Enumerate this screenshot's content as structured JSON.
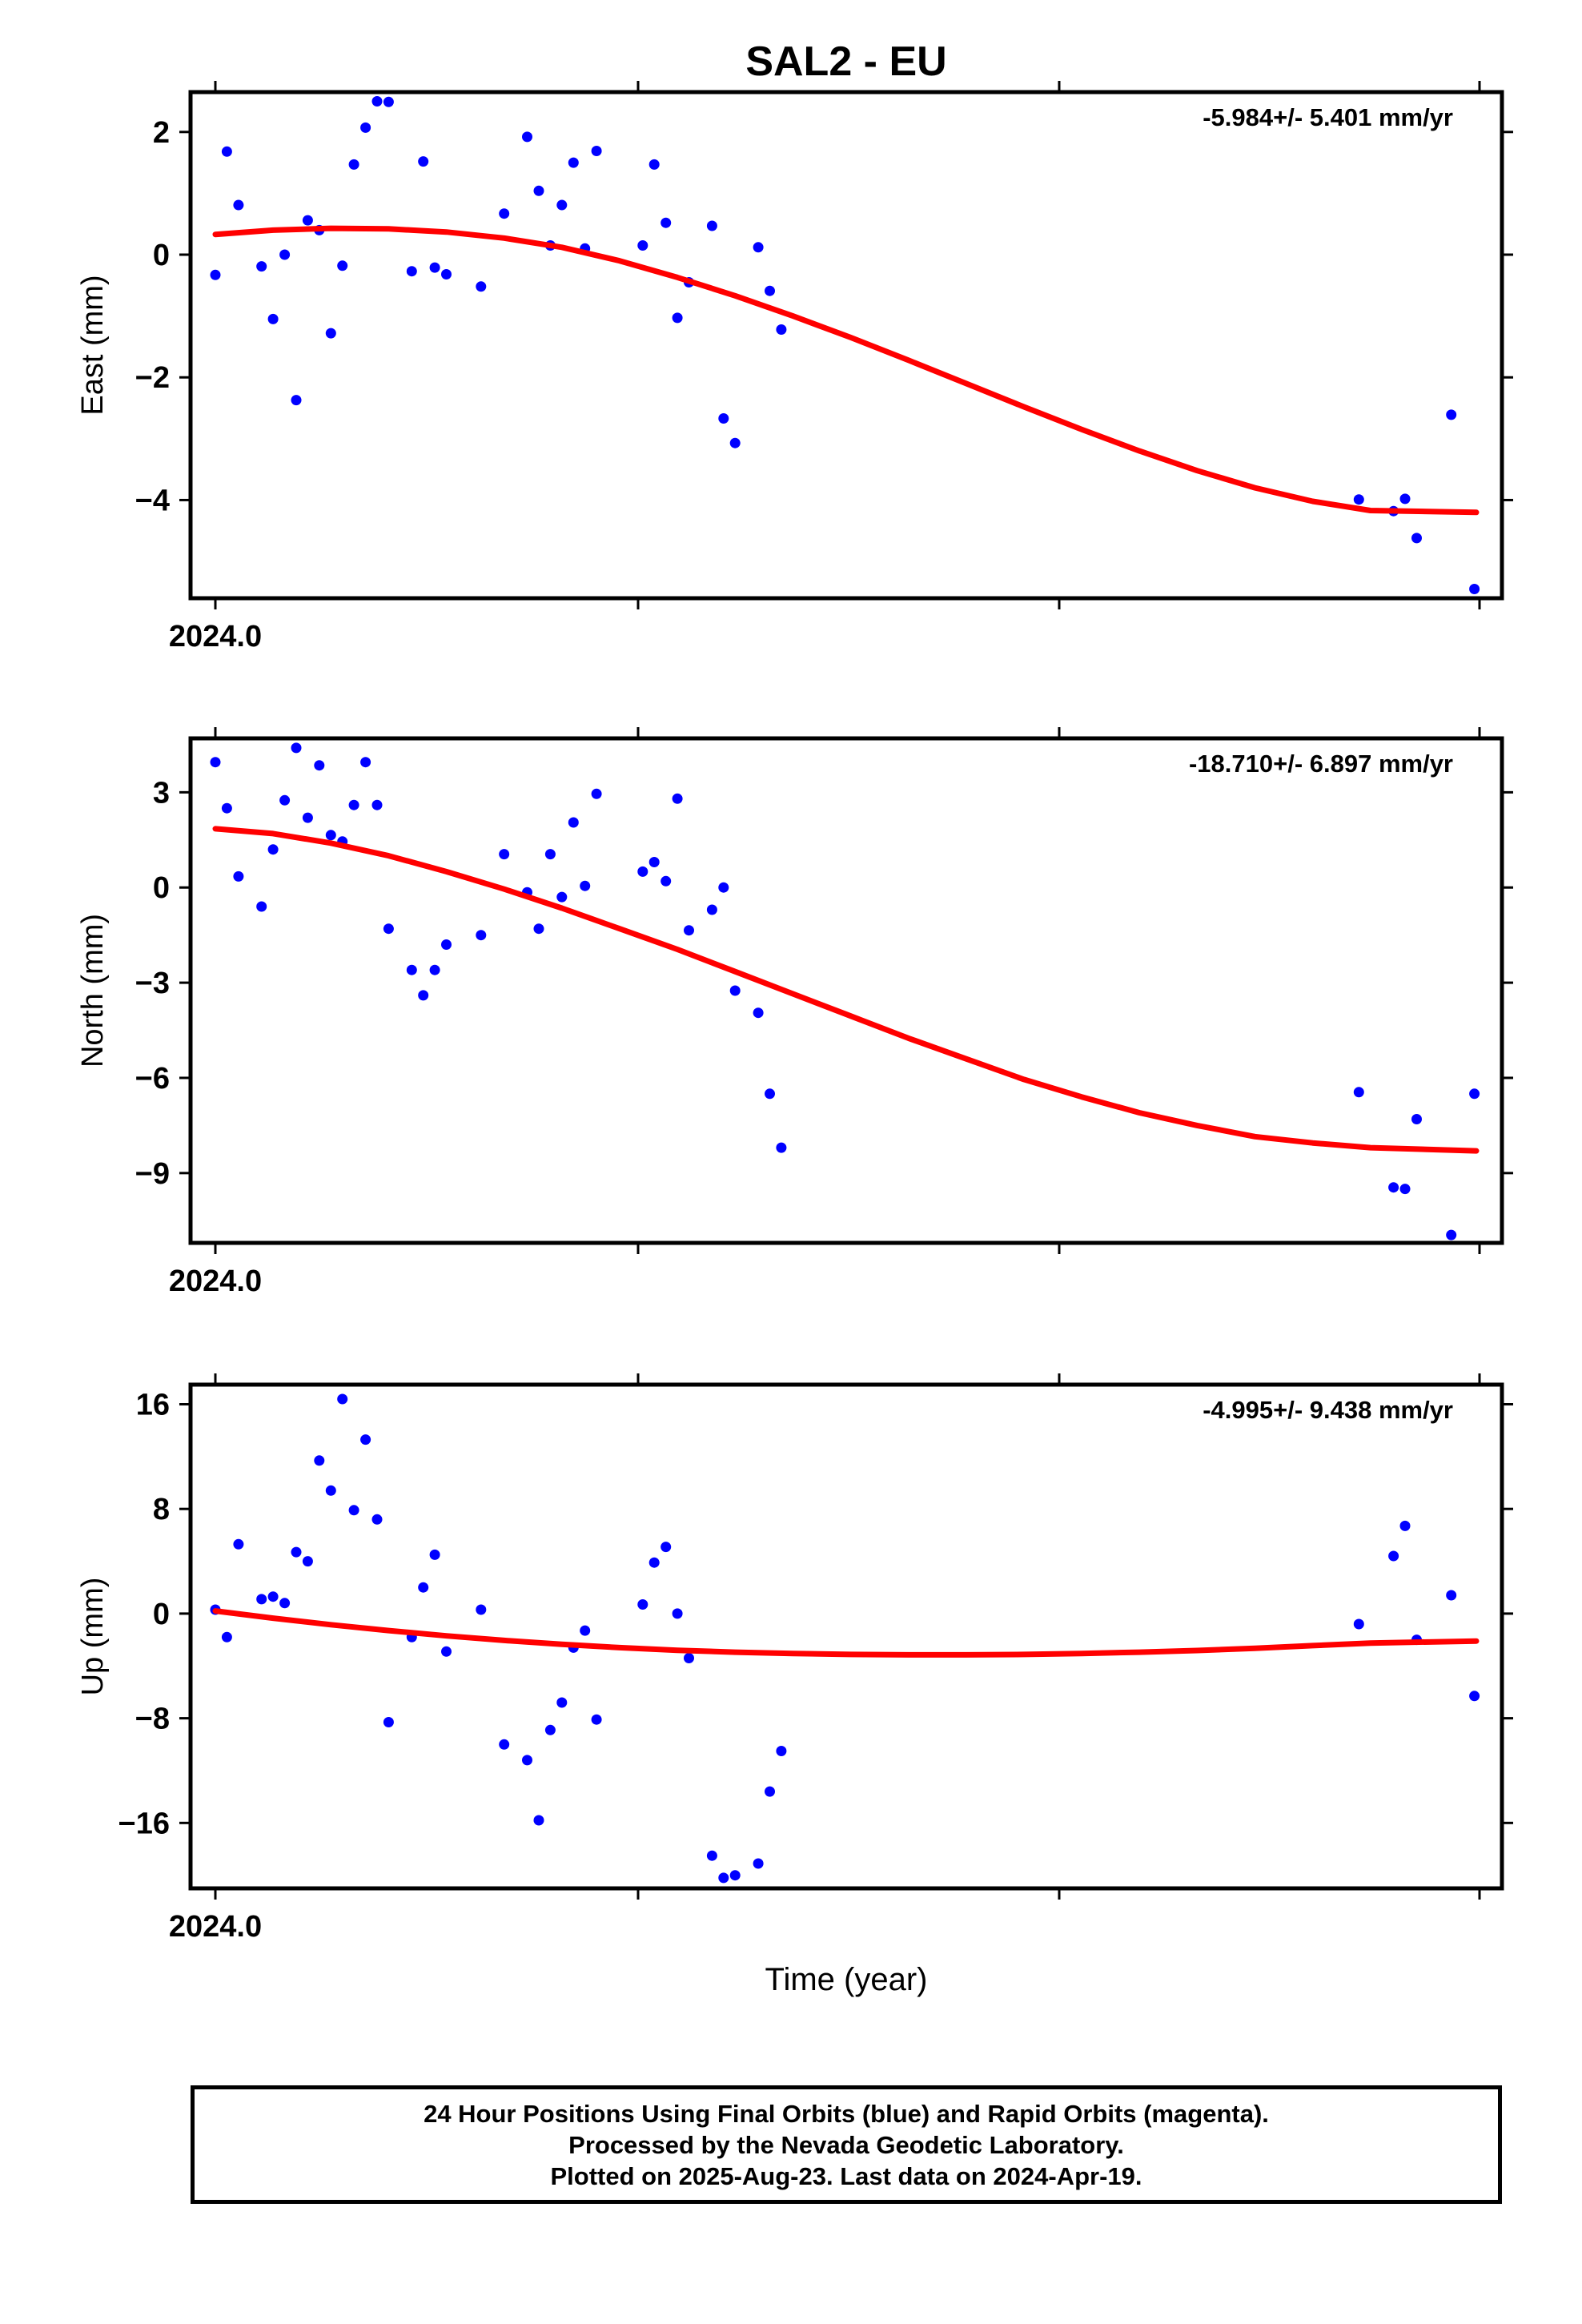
{
  "title": "SAL2 - EU",
  "colors": {
    "points": "#0000ff",
    "fit": "#ff0000",
    "axes": "#000000"
  },
  "xlabel": "Time (year)",
  "chart_data": [
    {
      "type": "scatter",
      "name": "east",
      "ylabel": "East (mm)",
      "rate_text": "-5.984+/- 5.401 mm/yr",
      "xlim": [
        2023.988,
        2024.315
      ],
      "ylim": [
        -5.6,
        2.65
      ],
      "x_tick_label": "2024.0",
      "y_ticks": [
        2,
        0,
        -2,
        -4
      ],
      "y_tick_labels": [
        "2",
        "0",
        "−2",
        "−4"
      ],
      "points": [
        [
          2024.0,
          -0.33
        ],
        [
          2024.003,
          1.68
        ],
        [
          2024.006,
          0.81
        ],
        [
          2024.012,
          -0.19
        ],
        [
          2024.015,
          -1.05
        ],
        [
          2024.018,
          0.0
        ],
        [
          2024.021,
          -2.37
        ],
        [
          2024.024,
          0.56
        ],
        [
          2024.027,
          0.4
        ],
        [
          2024.03,
          -1.28
        ],
        [
          2024.033,
          -0.18
        ],
        [
          2024.036,
          1.47
        ],
        [
          2024.039,
          2.07
        ],
        [
          2024.042,
          2.5
        ],
        [
          2024.045,
          2.49
        ],
        [
          2024.051,
          -0.27
        ],
        [
          2024.054,
          1.52
        ],
        [
          2024.057,
          -0.21
        ],
        [
          2024.06,
          -0.32
        ],
        [
          2024.069,
          -0.52
        ],
        [
          2024.075,
          0.67
        ],
        [
          2024.081,
          1.92
        ],
        [
          2024.084,
          1.04
        ],
        [
          2024.087,
          0.15
        ],
        [
          2024.09,
          0.81
        ],
        [
          2024.093,
          1.5
        ],
        [
          2024.096,
          0.1
        ],
        [
          2024.099,
          1.69
        ],
        [
          2024.111,
          0.15
        ],
        [
          2024.114,
          1.47
        ],
        [
          2024.117,
          0.52
        ],
        [
          2024.12,
          -1.03
        ],
        [
          2024.123,
          -0.45
        ],
        [
          2024.129,
          0.47
        ],
        [
          2024.132,
          -2.67
        ],
        [
          2024.135,
          -3.07
        ],
        [
          2024.141,
          0.12
        ],
        [
          2024.144,
          -0.59
        ],
        [
          2024.147,
          -1.22
        ],
        [
          2024.297,
          -3.99
        ],
        [
          2024.306,
          -4.18
        ],
        [
          2024.309,
          -3.98
        ],
        [
          2024.312,
          -4.62
        ],
        [
          2024.321,
          -2.61
        ],
        [
          2024.327,
          -5.45
        ]
      ],
      "trend": [
        [
          2024.0,
          0.33
        ],
        [
          2024.015,
          0.4
        ],
        [
          2024.03,
          0.43
        ],
        [
          2024.045,
          0.42
        ],
        [
          2024.06,
          0.37
        ],
        [
          2024.075,
          0.27
        ],
        [
          2024.09,
          0.12
        ],
        [
          2024.105,
          -0.1
        ],
        [
          2024.12,
          -0.37
        ],
        [
          2024.135,
          -0.67
        ],
        [
          2024.15,
          -1.0
        ],
        [
          2024.165,
          -1.35
        ],
        [
          2024.18,
          -1.72
        ],
        [
          2024.195,
          -2.1
        ],
        [
          2024.21,
          -2.48
        ],
        [
          2024.225,
          -2.85
        ],
        [
          2024.24,
          -3.2
        ],
        [
          2024.255,
          -3.52
        ],
        [
          2024.27,
          -3.8
        ],
        [
          2024.285,
          -4.02
        ],
        [
          2024.3,
          -4.17
        ],
        [
          2024.3275,
          -4.2
        ]
      ]
    },
    {
      "type": "scatter",
      "name": "north",
      "ylabel": "North (mm)",
      "rate_text": "-18.710+/- 6.897 mm/yr",
      "xlim": [
        2023.988,
        2024.315
      ],
      "ylim": [
        -11.2,
        4.7
      ],
      "x_tick_label": "2024.0",
      "y_ticks": [
        3,
        0,
        -3,
        -6,
        -9
      ],
      "y_tick_labels": [
        "3",
        "0",
        "−3",
        "−6",
        "−9"
      ],
      "points": [
        [
          2024.0,
          3.95
        ],
        [
          2024.003,
          2.5
        ],
        [
          2024.006,
          0.35
        ],
        [
          2024.012,
          -0.6
        ],
        [
          2024.015,
          1.2
        ],
        [
          2024.018,
          2.75
        ],
        [
          2024.021,
          4.4
        ],
        [
          2024.024,
          2.2
        ],
        [
          2024.027,
          3.85
        ],
        [
          2024.03,
          1.65
        ],
        [
          2024.033,
          1.45
        ],
        [
          2024.036,
          2.6
        ],
        [
          2024.039,
          3.95
        ],
        [
          2024.042,
          2.6
        ],
        [
          2024.045,
          -1.3
        ],
        [
          2024.051,
          -2.6
        ],
        [
          2024.054,
          -3.4
        ],
        [
          2024.057,
          -2.6
        ],
        [
          2024.06,
          -1.8
        ],
        [
          2024.069,
          -1.5
        ],
        [
          2024.075,
          1.05
        ],
        [
          2024.081,
          -0.15
        ],
        [
          2024.084,
          -1.3
        ],
        [
          2024.087,
          1.05
        ],
        [
          2024.09,
          -0.3
        ],
        [
          2024.093,
          2.05
        ],
        [
          2024.096,
          0.05
        ],
        [
          2024.099,
          2.95
        ],
        [
          2024.111,
          0.5
        ],
        [
          2024.114,
          0.8
        ],
        [
          2024.117,
          0.2
        ],
        [
          2024.12,
          2.8
        ],
        [
          2024.123,
          -1.35
        ],
        [
          2024.129,
          -0.7
        ],
        [
          2024.132,
          0.0
        ],
        [
          2024.135,
          -3.25
        ],
        [
          2024.141,
          -3.95
        ],
        [
          2024.144,
          -6.5
        ],
        [
          2024.147,
          -8.2
        ],
        [
          2024.297,
          -6.45
        ],
        [
          2024.306,
          -9.45
        ],
        [
          2024.309,
          -9.5
        ],
        [
          2024.312,
          -7.3
        ],
        [
          2024.321,
          -10.95
        ],
        [
          2024.327,
          -6.5
        ]
      ],
      "trend": [
        [
          2024.0,
          1.85
        ],
        [
          2024.015,
          1.7
        ],
        [
          2024.03,
          1.4
        ],
        [
          2024.045,
          1.0
        ],
        [
          2024.06,
          0.5
        ],
        [
          2024.075,
          -0.05
        ],
        [
          2024.09,
          -0.65
        ],
        [
          2024.105,
          -1.3
        ],
        [
          2024.12,
          -1.95
        ],
        [
          2024.135,
          -2.65
        ],
        [
          2024.15,
          -3.35
        ],
        [
          2024.165,
          -4.05
        ],
        [
          2024.18,
          -4.75
        ],
        [
          2024.195,
          -5.4
        ],
        [
          2024.21,
          -6.05
        ],
        [
          2024.225,
          -6.6
        ],
        [
          2024.24,
          -7.1
        ],
        [
          2024.255,
          -7.5
        ],
        [
          2024.27,
          -7.85
        ],
        [
          2024.285,
          -8.05
        ],
        [
          2024.3,
          -8.2
        ],
        [
          2024.3275,
          -8.3
        ]
      ]
    },
    {
      "type": "scatter",
      "name": "up",
      "ylabel": "Up (mm)",
      "rate_text": "-4.995+/- 9.438 mm/yr",
      "xlim": [
        2023.988,
        2024.315
      ],
      "ylim": [
        -21,
        17.5
      ],
      "x_tick_label": "2024.0",
      "y_ticks": [
        16,
        8,
        0,
        -8,
        -16
      ],
      "y_tick_labels": [
        "16",
        "8",
        "0",
        "−8",
        "−16"
      ],
      "points": [
        [
          2024.0,
          0.3
        ],
        [
          2024.003,
          -1.8
        ],
        [
          2024.006,
          5.3
        ],
        [
          2024.012,
          1.1
        ],
        [
          2024.015,
          1.3
        ],
        [
          2024.018,
          0.8
        ],
        [
          2024.021,
          4.7
        ],
        [
          2024.024,
          4.0
        ],
        [
          2024.027,
          11.7
        ],
        [
          2024.03,
          9.4
        ],
        [
          2024.033,
          16.4
        ],
        [
          2024.036,
          7.9
        ],
        [
          2024.039,
          13.3
        ],
        [
          2024.042,
          7.2
        ],
        [
          2024.045,
          -8.3
        ],
        [
          2024.051,
          -1.8
        ],
        [
          2024.054,
          2.0
        ],
        [
          2024.057,
          4.5
        ],
        [
          2024.06,
          -2.9
        ],
        [
          2024.069,
          0.3
        ],
        [
          2024.075,
          -10.0
        ],
        [
          2024.081,
          -11.2
        ],
        [
          2024.084,
          -15.8
        ],
        [
          2024.087,
          -8.9
        ],
        [
          2024.09,
          -6.8
        ],
        [
          2024.093,
          -2.6
        ],
        [
          2024.096,
          -1.3
        ],
        [
          2024.099,
          -8.1
        ],
        [
          2024.111,
          0.7
        ],
        [
          2024.114,
          3.9
        ],
        [
          2024.117,
          5.1
        ],
        [
          2024.12,
          0.0
        ],
        [
          2024.123,
          -3.4
        ],
        [
          2024.129,
          -18.5
        ],
        [
          2024.132,
          -20.2
        ],
        [
          2024.135,
          -20.0
        ],
        [
          2024.141,
          -19.1
        ],
        [
          2024.144,
          -13.6
        ],
        [
          2024.147,
          -10.5
        ],
        [
          2024.297,
          -0.8
        ],
        [
          2024.306,
          4.4
        ],
        [
          2024.309,
          6.7
        ],
        [
          2024.312,
          -2.0
        ],
        [
          2024.321,
          1.4
        ],
        [
          2024.327,
          -6.3
        ]
      ],
      "trend": [
        [
          2024.0,
          0.2
        ],
        [
          2024.015,
          -0.35
        ],
        [
          2024.03,
          -0.85
        ],
        [
          2024.045,
          -1.3
        ],
        [
          2024.06,
          -1.7
        ],
        [
          2024.075,
          -2.05
        ],
        [
          2024.09,
          -2.35
        ],
        [
          2024.105,
          -2.6
        ],
        [
          2024.12,
          -2.8
        ],
        [
          2024.135,
          -2.95
        ],
        [
          2024.15,
          -3.05
        ],
        [
          2024.165,
          -3.12
        ],
        [
          2024.18,
          -3.15
        ],
        [
          2024.195,
          -3.15
        ],
        [
          2024.21,
          -3.12
        ],
        [
          2024.225,
          -3.05
        ],
        [
          2024.24,
          -2.95
        ],
        [
          2024.255,
          -2.82
        ],
        [
          2024.27,
          -2.65
        ],
        [
          2024.285,
          -2.45
        ],
        [
          2024.3,
          -2.25
        ],
        [
          2024.3275,
          -2.1
        ]
      ]
    }
  ],
  "footer": {
    "line1": "24 Hour Positions Using Final Orbits (blue) and Rapid Orbits (magenta).",
    "line2": "Processed by the Nevada Geodetic Laboratory.",
    "line3": "Plotted on 2025-Aug-23. Last data on 2024-Apr-19."
  }
}
